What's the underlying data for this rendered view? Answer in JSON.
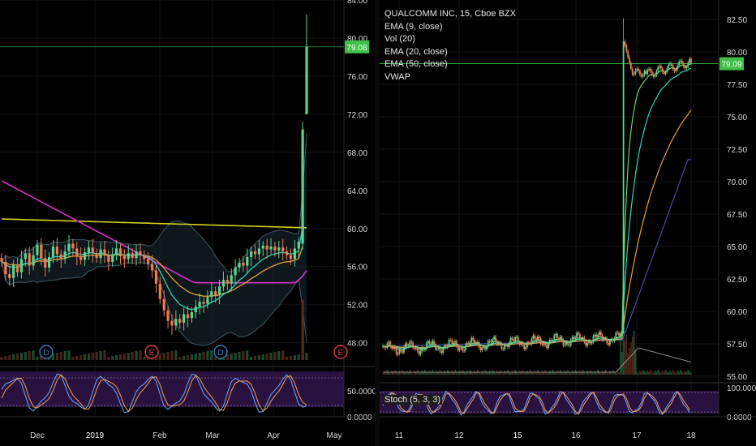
{
  "colors": {
    "bg": "#000000",
    "grid": "#141414",
    "up": "#5fd38d",
    "down": "#f27b53",
    "ema9": "#2fd4b8",
    "ema20": "#e8a03a",
    "ema50": "#4a4aa8",
    "vwap": "#3da2d8",
    "sma_pink": "#d62fc8",
    "sma_yellow": "#d6d21a",
    "price_line": "#38c93b",
    "price_tag": "#3fbf47",
    "stoch_bg": "#2a1240",
    "stoch_k": "#6fa8ff",
    "stoch_d": "#f2a14a",
    "event_dividend": "#2e7ab8",
    "event_earnings": "#d9403a"
  },
  "chart_data": [
    {
      "type": "candlestick",
      "panel": "left",
      "timeframe": "daily",
      "x_labels": [
        "Dec",
        "2019",
        "Feb",
        "Mar",
        "Apr",
        "May"
      ],
      "y_ticks": [
        "84.00",
        "80.00",
        "76.00",
        "72.00",
        "68.00",
        "64.00",
        "60.00",
        "56.00",
        "52.00",
        "48.00"
      ],
      "ylim": [
        45.5,
        84
      ],
      "last_price": "79.08",
      "last_price_value": 79.08,
      "oscillator_ticks": [
        "50.0000",
        "0.0000"
      ],
      "events": [
        "D",
        "E",
        "D",
        "E"
      ],
      "closes": [
        56.5,
        55.2,
        54.8,
        56.2,
        55.4,
        56.8,
        57.4,
        56.1,
        57.2,
        58.3,
        56.9,
        55.9,
        57.0,
        58.1,
        57.3,
        56.8,
        57.6,
        58.4,
        57.9,
        57.1,
        56.7,
        57.5,
        58.0,
        57.4,
        56.9,
        57.8,
        57.2,
        56.5,
        57.3,
        57.9,
        57.1,
        56.8,
        57.4,
        56.9,
        57.6,
        57.2,
        56.8,
        56.3,
        55.6,
        54.2,
        52.6,
        51.4,
        50.3,
        49.8,
        50.5,
        50.1,
        51.0,
        50.6,
        51.2,
        51.8,
        52.3,
        52.1,
        52.8,
        53.4,
        53.0,
        53.9,
        54.6,
        54.2,
        55.1,
        55.9,
        56.4,
        56.1,
        57.0,
        57.6,
        57.3,
        57.9,
        58.2,
        57.8,
        58.1,
        57.7,
        58.0,
        57.6,
        57.2,
        56.8,
        57.9,
        58.6,
        70.4,
        79.1
      ],
      "indicators": [
        "SMA pink",
        "SMA yellow",
        "EMA green",
        "EMA orange",
        "Bollinger Bands",
        "Stochastic"
      ]
    },
    {
      "type": "candlestick",
      "panel": "right",
      "timeframe": "15",
      "symbol": "QUALCOMM INC, 15, Cboe BZX",
      "x_labels": [
        "11",
        "12",
        "15",
        "16",
        "17",
        "18"
      ],
      "y_ticks": [
        "82.50",
        "80.00",
        "77.50",
        "75.00",
        "72.50",
        "70.00",
        "67.50",
        "65.00",
        "62.50",
        "60.00",
        "57.50",
        "55.00"
      ],
      "ylim": [
        54.5,
        84
      ],
      "last_price": "79.09",
      "last_price_value": 79.09,
      "oscillator_ticks": [
        "100.0000",
        "0.0000"
      ],
      "breakout": {
        "from": 58.3,
        "high": 82.6,
        "open_after_gap": 80.8,
        "low_after": 78.0,
        "close": 79.09
      },
      "base_start": 57.1,
      "base_end": 58.0,
      "indicators": [
        "EMA (9, close)",
        "Vol (20)",
        "EMA (20, close)",
        "EMA (50, close)",
        "VWAP",
        "Stoch (5, 3, 3)"
      ]
    }
  ],
  "legend": {
    "title": "QUALCOMM INC, 15, Cboe BZX",
    "ema9": "EMA (9, close)",
    "vol": "Vol (20)",
    "ema20": "EMA (20, close)",
    "ema50": "EMA (50, close)",
    "vwap": "VWAP"
  },
  "stoch_label": "Stoch (5, 3, 3)"
}
